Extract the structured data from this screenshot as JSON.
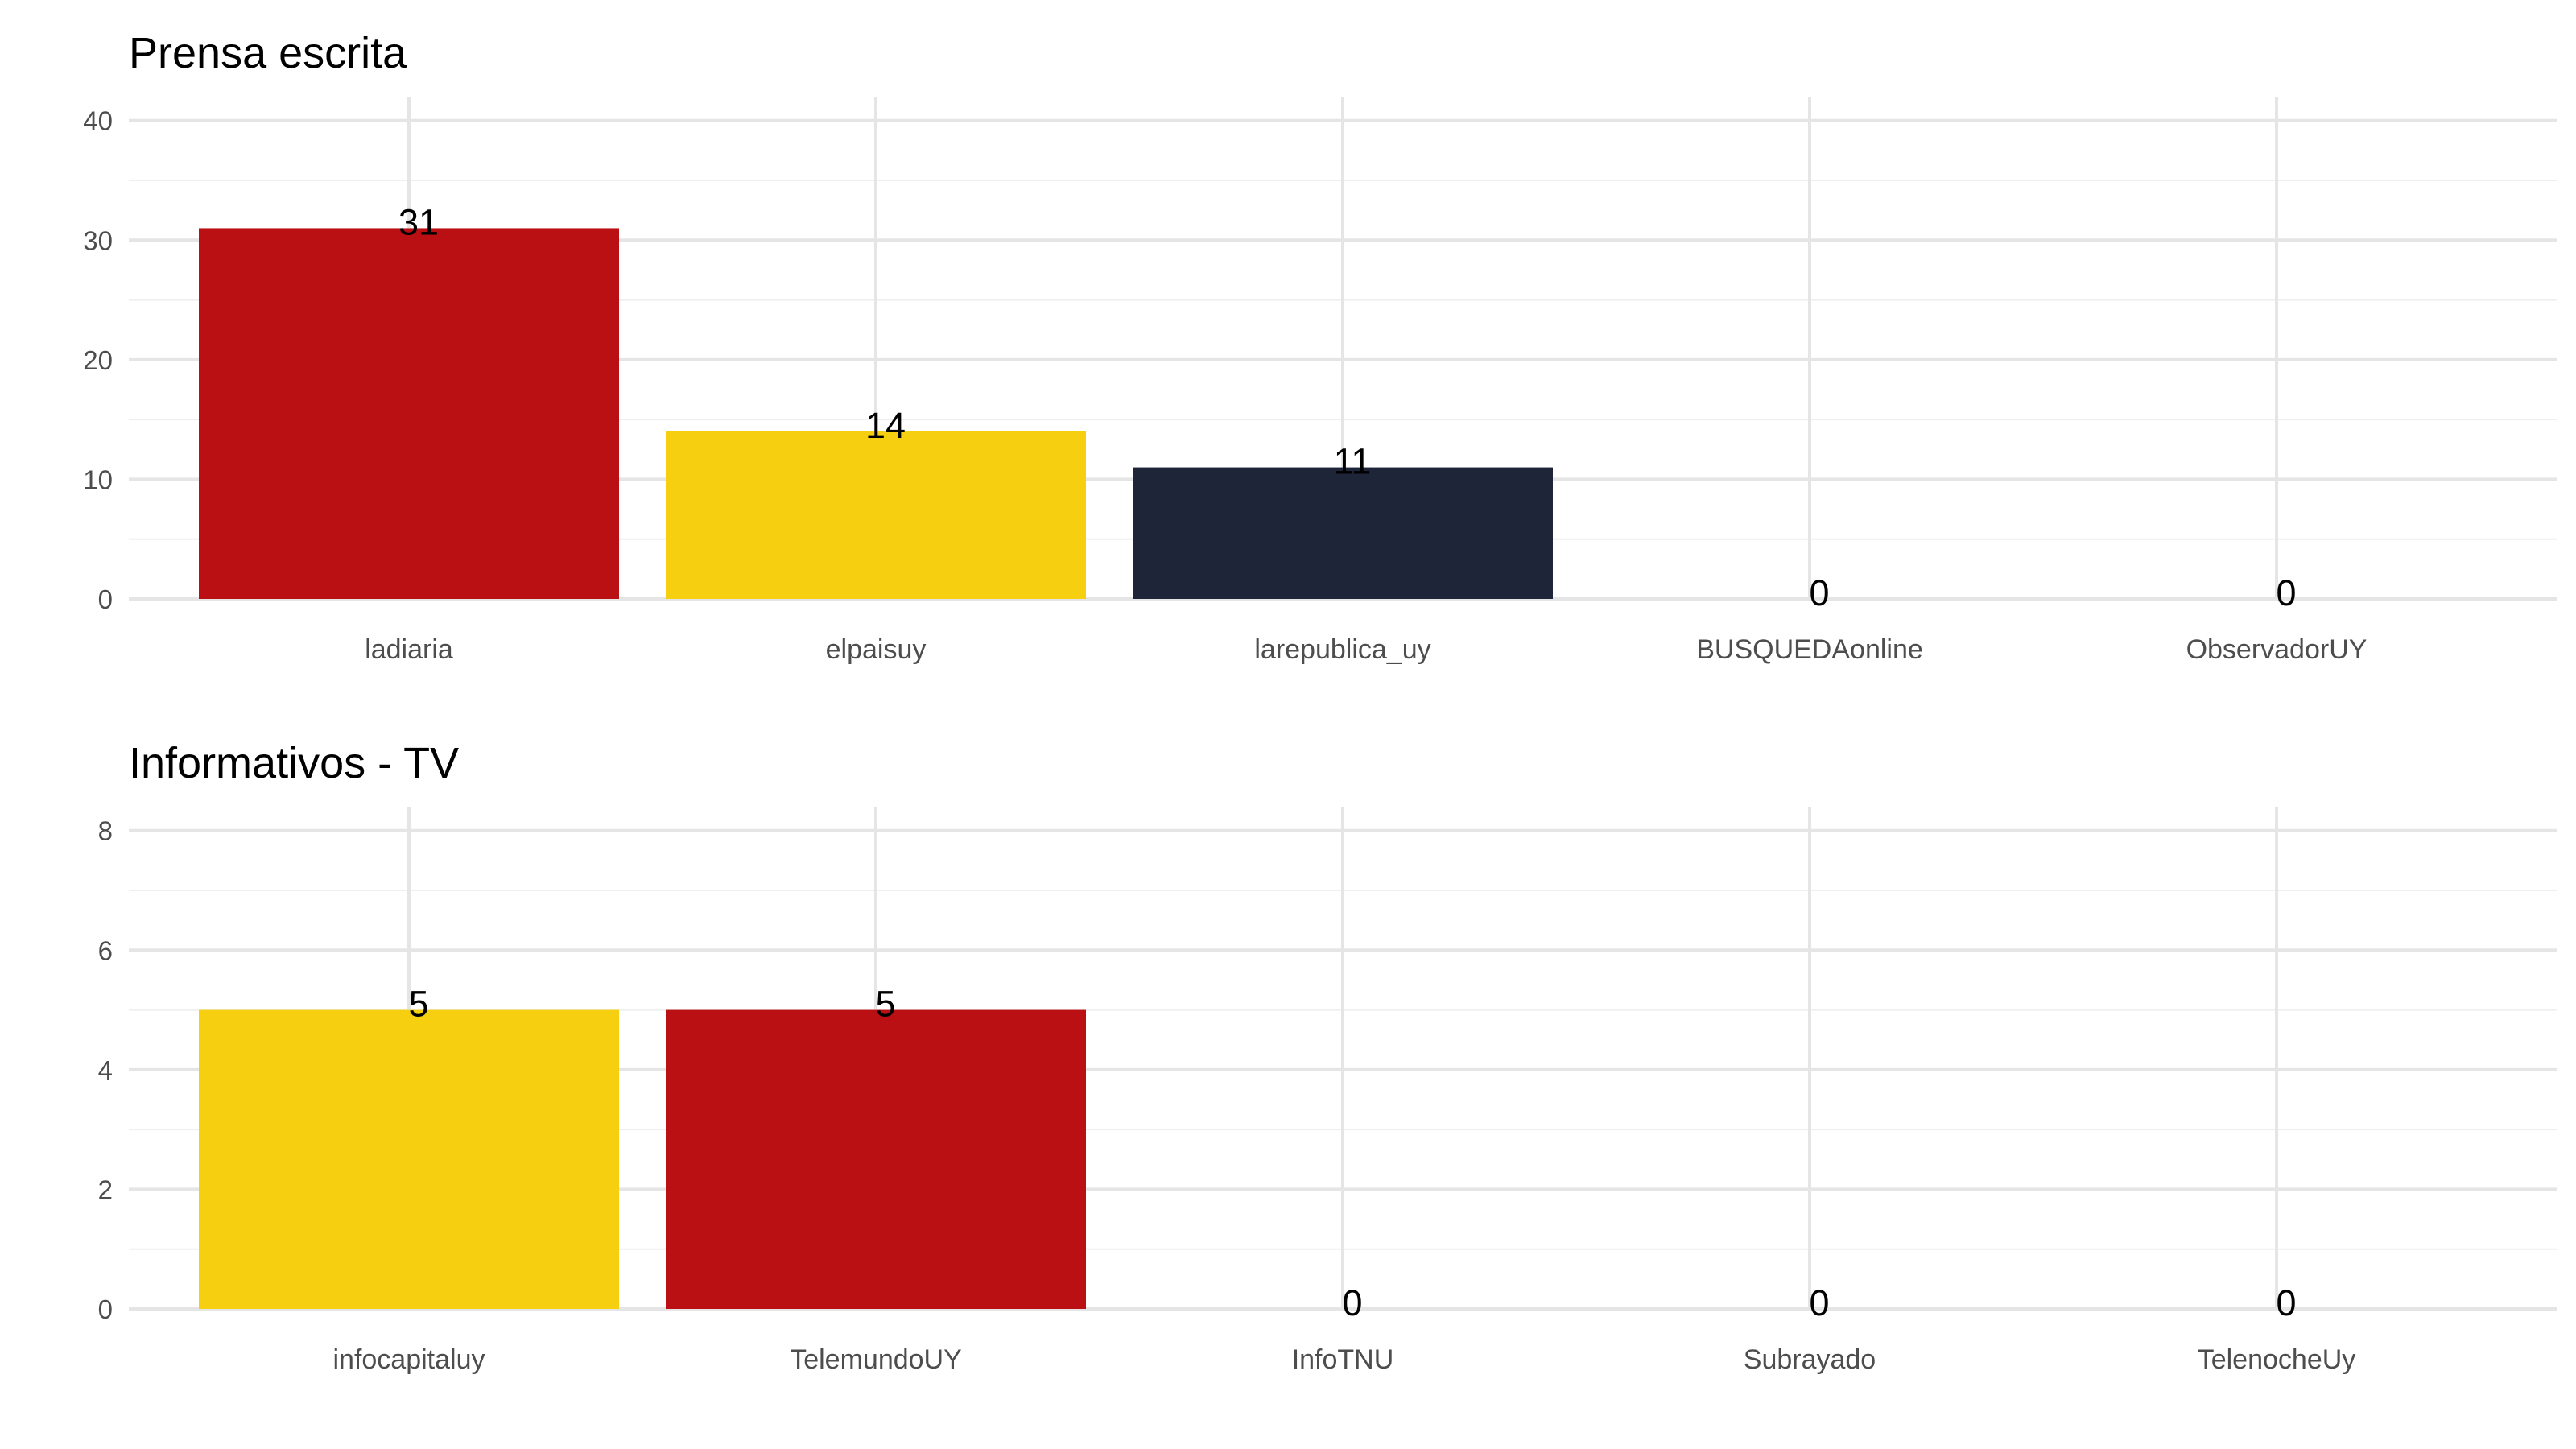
{
  "chart_data": [
    {
      "type": "bar",
      "title": "Prensa escrita",
      "xlabel": "",
      "ylabel": "",
      "ylim": [
        0,
        42
      ],
      "yticks": [
        0,
        10,
        20,
        30,
        40
      ],
      "grid": true,
      "categories": [
        "ladiaria",
        "elpaisuy",
        "larepublica_uy",
        "BUSQUEDAonline",
        "ObservadorUY"
      ],
      "values": [
        31,
        14,
        11,
        0,
        0
      ],
      "colors": [
        "#bb1013",
        "#f6cf11",
        "#1f2539",
        "#bb1013",
        "#bb1013"
      ]
    },
    {
      "type": "bar",
      "title": "Informativos - TV",
      "xlabel": "",
      "ylabel": "",
      "ylim": [
        0,
        8.4
      ],
      "yticks": [
        0,
        2,
        4,
        6,
        8
      ],
      "grid": true,
      "categories": [
        "infocapitaluy",
        "TelemundoUY",
        "InfoTNU",
        "Subrayado",
        "TelenocheUy"
      ],
      "values": [
        5,
        5,
        0,
        0,
        0
      ],
      "colors": [
        "#f6cf11",
        "#bb1013",
        "#bb1013",
        "#bb1013",
        "#bb1013"
      ]
    }
  ]
}
